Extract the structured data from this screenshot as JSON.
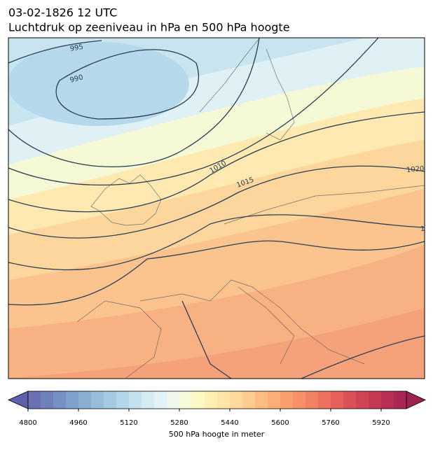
{
  "title": [
    "03-02-1826 12 UTC",
    "Luchtdruk op zeeniveau in hPa en 500 hPa hoogte"
  ],
  "contour_labels": [
    "995",
    "990",
    "1010",
    "1015",
    "1020",
    "1"
  ],
  "colorbar": {
    "label": "500 hPa hoogte in meter",
    "lim": [
      4800,
      6000
    ],
    "ticks": [
      4800,
      4960,
      5120,
      5280,
      5440,
      5600,
      5760,
      5920
    ],
    "colors": [
      "#6a72b4",
      "#6f80bb",
      "#7591c3",
      "#7ea1cb",
      "#89b0d3",
      "#96bedb",
      "#a4cbe2",
      "#b3d7ea",
      "#c3e2ef",
      "#d3ebf3",
      "#e2f2f5",
      "#eef7ea",
      "#f7fad8",
      "#fdf8c6",
      "#fff0b2",
      "#fee5a5",
      "#fed99a",
      "#fdcc8e",
      "#fcbd82",
      "#fbae78",
      "#f99f6e",
      "#f69067",
      "#f28062",
      "#ec705d",
      "#e5605a",
      "#dc5157",
      "#d14456",
      "#c53955",
      "#b72f54",
      "#a92752"
    ],
    "extend_colors": [
      "#5e60a9",
      "#9c2250"
    ]
  }
}
